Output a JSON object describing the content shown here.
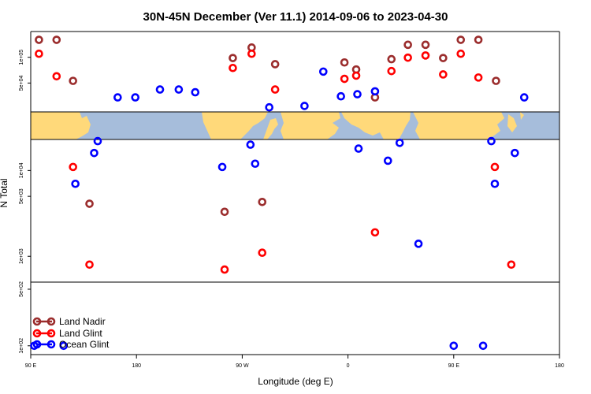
{
  "chart_data": {
    "type": "scatter",
    "title": "30N-45N December (Ver 11.1)   2014-09-06 to 2023-04-30",
    "xlabel": "Longitude (deg E)",
    "ylabel": "N Total",
    "x_ticks": [
      {
        "value": 90,
        "label": "90 E"
      },
      {
        "value": 180,
        "label": "180"
      },
      {
        "value": 270,
        "label": "90 W"
      },
      {
        "value": 360,
        "label": "0"
      },
      {
        "value": 450,
        "label": "90 E"
      },
      {
        "value": 540,
        "label": "180"
      }
    ],
    "xlim": [
      90,
      540
    ],
    "y_scale": "log",
    "ylim": [
      80,
      200000
    ],
    "y_ticks": [
      {
        "value": 100,
        "label": "1e+02"
      },
      {
        "value": 500,
        "label": "5e+02"
      },
      {
        "value": 1000,
        "label": "1e+03"
      },
      {
        "value": 5000,
        "label": "5e+03"
      },
      {
        "value": 10000,
        "label": "1e+04"
      },
      {
        "value": 50000,
        "label": "5e+04"
      },
      {
        "value": 100000,
        "label": "1e+05"
      }
    ],
    "y_break": [
      500,
      23000
    ],
    "map_band": "world map strip between the two upper panels",
    "legend_position": "bottom-left",
    "colors": {
      "land_nadir": "#9b2d2d",
      "land_glint": "#ff0000",
      "ocean_glint": "#0000ff",
      "ocean": "#a6bddb",
      "land": "#ffd97a"
    },
    "series": [
      {
        "name": "Land Nadir",
        "color": "#9b2d2d",
        "points": [
          [
            97,
            160000
          ],
          [
            112,
            160000
          ],
          [
            126,
            53000
          ],
          [
            262,
            98000
          ],
          [
            278,
            130000
          ],
          [
            298,
            83000
          ],
          [
            357,
            87000
          ],
          [
            367,
            72000
          ],
          [
            383,
            34000
          ],
          [
            397,
            95000
          ],
          [
            411,
            140000
          ],
          [
            426,
            140000
          ],
          [
            441,
            98000
          ],
          [
            456,
            160000
          ],
          [
            471,
            160000
          ],
          [
            486,
            53000
          ],
          [
            140,
            4100
          ],
          [
            255,
            3300
          ],
          [
            287,
            4300
          ]
        ]
      },
      {
        "name": "Land Glint",
        "color": "#ff0000",
        "points": [
          [
            97,
            110000
          ],
          [
            112,
            60000
          ],
          [
            262,
            75000
          ],
          [
            278,
            110000
          ],
          [
            298,
            42000
          ],
          [
            357,
            56000
          ],
          [
            367,
            61000
          ],
          [
            383,
            1900
          ],
          [
            397,
            69000
          ],
          [
            411,
            99000
          ],
          [
            426,
            105000
          ],
          [
            441,
            63000
          ],
          [
            456,
            110000
          ],
          [
            471,
            58000
          ],
          [
            126,
            11000
          ],
          [
            140,
            800
          ],
          [
            255,
            700
          ],
          [
            287,
            1100
          ],
          [
            485,
            11000
          ],
          [
            499,
            800
          ]
        ]
      },
      {
        "name": "Ocean Glint",
        "color": "#0000ff",
        "points": [
          [
            164,
            34000
          ],
          [
            179,
            34000
          ],
          [
            200,
            42000
          ],
          [
            216,
            42000
          ],
          [
            230,
            39000
          ],
          [
            293,
            26000
          ],
          [
            323,
            27000
          ],
          [
            339,
            68000
          ],
          [
            354,
            35000
          ],
          [
            368,
            37000
          ],
          [
            383,
            40000
          ],
          [
            147,
            22000
          ],
          [
            277,
            20000
          ],
          [
            404,
            21000
          ],
          [
            482,
            22000
          ],
          [
            510,
            34000
          ],
          [
            369,
            18000
          ],
          [
            144,
            16000
          ],
          [
            128,
            7000
          ],
          [
            253,
            11000
          ],
          [
            281,
            12000
          ],
          [
            394,
            13000
          ],
          [
            485,
            7000
          ],
          [
            502,
            16000
          ],
          [
            420,
            1400
          ],
          [
            93,
            100
          ],
          [
            118,
            100
          ],
          [
            450,
            100
          ],
          [
            475,
            100
          ]
        ]
      }
    ]
  }
}
